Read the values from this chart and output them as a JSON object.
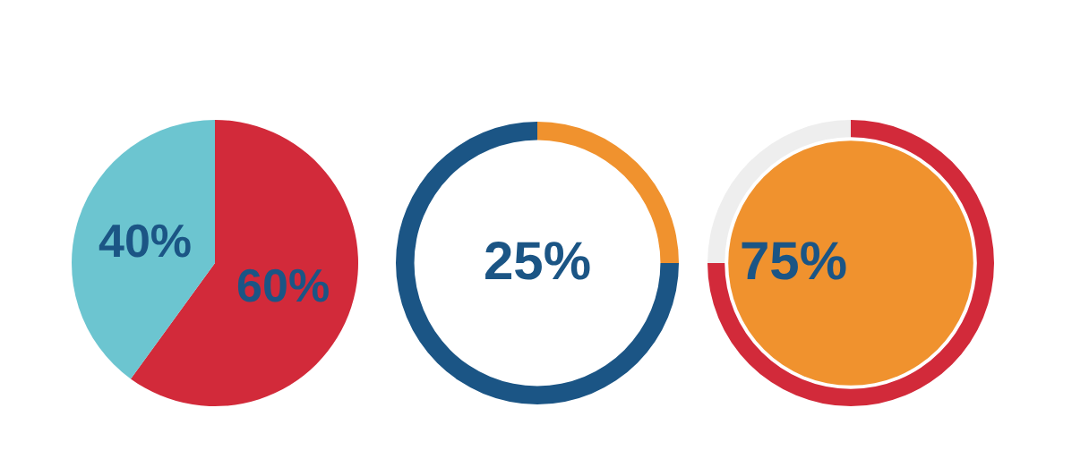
{
  "chart_data": [
    {
      "type": "pie",
      "categories": [
        null,
        null
      ],
      "values": [
        60,
        40
      ],
      "colors": [
        "#d22a3a",
        "#6cc5d0"
      ],
      "value_labels": [
        "60%",
        "40%"
      ]
    },
    {
      "type": "donut",
      "categories": [
        null,
        null
      ],
      "values": [
        25,
        75
      ],
      "colors": [
        "#f0922e",
        "#1b5585"
      ],
      "annotations": [
        "25%"
      ]
    },
    {
      "type": "donut",
      "categories": [
        null,
        null
      ],
      "values": [
        75,
        25
      ],
      "colors": [
        "#d22a3a",
        "#eeeeee"
      ],
      "annotations": [
        "75%"
      ]
    }
  ]
}
